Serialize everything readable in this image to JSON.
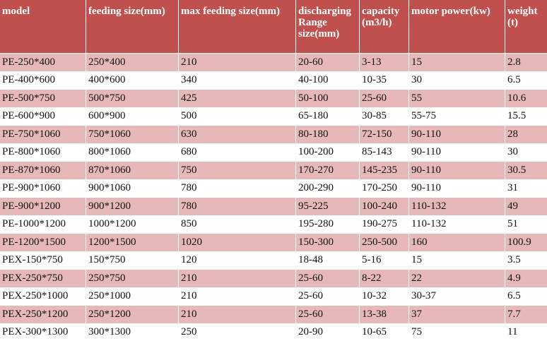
{
  "table": {
    "header": [
      [
        "model"
      ],
      [
        "feeding size(mm)"
      ],
      [
        "max feeding size(mm)"
      ],
      [
        "discharging",
        "Range",
        "size(mm)"
      ],
      [
        "capacity",
        "(m3/h)"
      ],
      [
        "motor power(kw)"
      ],
      [
        "weight",
        "(t)"
      ]
    ],
    "rows": [
      [
        "PE-250*400",
        "250*400",
        "210",
        "20-60",
        "3-13",
        "15",
        "2.8"
      ],
      [
        "PE-400*600",
        "400*600",
        "340",
        "40-100",
        "10-35",
        "30",
        "6.5"
      ],
      [
        "PE-500*750",
        "500*750",
        "425",
        "50-100",
        "25-60",
        "55",
        "10.6"
      ],
      [
        "PE-600*900",
        "600*900",
        "500",
        "65-180",
        "30-85",
        "55-75",
        "15.5"
      ],
      [
        "PE-750*1060",
        "750*1060",
        "630",
        "80-180",
        "72-150",
        "90-110",
        "28"
      ],
      [
        "PE-800*1060",
        "800*1060",
        "680",
        "100-200",
        "85-143",
        "90-110",
        "30"
      ],
      [
        "PE-870*1060",
        "870*1060",
        "750",
        "170-270",
        "145-235",
        "90-110",
        "30.5"
      ],
      [
        "PE-900*1060",
        "900*1060",
        "780",
        "200-290",
        "170-250",
        "90-110",
        "31"
      ],
      [
        "PE-900*1200",
        "900*1200",
        "780",
        "95-225",
        "100-240",
        "110-132",
        "49"
      ],
      [
        "PE-1000*1200",
        "1000*1200",
        "850",
        "195-280",
        "190-275",
        "110-132",
        "51"
      ],
      [
        "PE-1200*1500",
        "1200*1500",
        "1020",
        "150-300",
        "250-500",
        "160",
        "100.9"
      ],
      [
        "PEX-150*750",
        "150*750",
        "120",
        "18-48",
        "5-16",
        "15",
        "3.5"
      ],
      [
        "PEX-250*750",
        "250*750",
        "210",
        "25-60",
        "8-22",
        "22",
        "4.9"
      ],
      [
        "PEX-250*1000",
        "250*1000",
        "210",
        "25-60",
        "10-32",
        "30-37",
        "6.5"
      ],
      [
        "PEX-250*1200",
        "250*1200",
        "210",
        "25-60",
        "13-38",
        "37",
        "7.7"
      ],
      [
        "PEX-300*1300",
        "300*1300",
        "250",
        "20-90",
        "10-65",
        "75",
        "11"
      ]
    ]
  }
}
